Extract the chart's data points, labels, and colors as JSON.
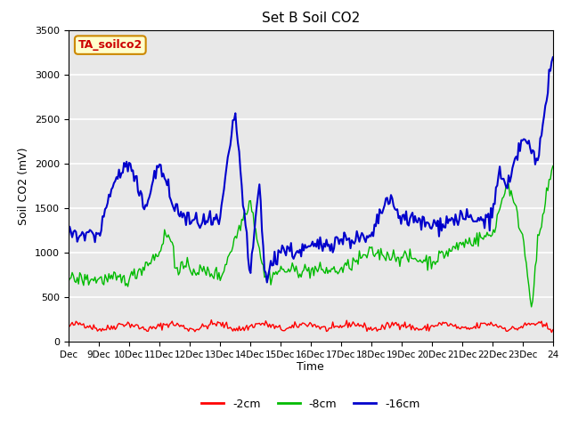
{
  "title": "Set B Soil CO2",
  "ylabel": "Soil CO2 (mV)",
  "xlabel": "Time",
  "ylim": [
    0,
    3500
  ],
  "background_color": "#e8e8e8",
  "plot_bg_color": "#e8e8e8",
  "grid_color": "white",
  "colors": {
    "2cm": "#ff0000",
    "8cm": "#00bb00",
    "16cm": "#0000cc"
  },
  "legend_labels": [
    "-2cm",
    "-8cm",
    "-16cm"
  ],
  "box_label": "TA_soilco2",
  "yticks": [
    0,
    500,
    1000,
    1500,
    2000,
    2500,
    3000,
    3500
  ],
  "x_tick_labels": [
    "Dec",
    "9Dec",
    "10Dec",
    "11Dec",
    "12Dec",
    "13Dec",
    "14Dec",
    "15Dec",
    "16Dec",
    "17Dec",
    "18Dec",
    "19Dec",
    "20Dec",
    "21Dec",
    "22Dec",
    "23Dec",
    "24"
  ],
  "seed": 42
}
